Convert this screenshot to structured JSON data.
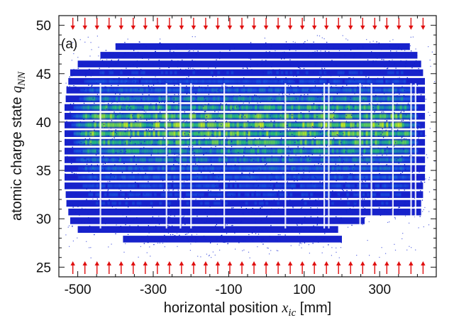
{
  "chart_data": {
    "type": "scatter",
    "panel_label": "(a)",
    "xlabel": {
      "prefix": "horizontal position ",
      "math": "x",
      "math_sub": "ic",
      "suffix": " [mm]"
    },
    "ylabel": {
      "prefix": "atomic charge state ",
      "math": "q",
      "math_sub": "NN"
    },
    "xlim": [
      -550,
      450
    ],
    "ylim": [
      24,
      51
    ],
    "x_ticks": [
      -500,
      -300,
      -100,
      100,
      300
    ],
    "x_tick_labels": [
      "-500",
      "-300",
      "-100",
      "100",
      "300"
    ],
    "x_minor_step": 50,
    "y_ticks": [
      25,
      30,
      35,
      40,
      45,
      50
    ],
    "y_tick_labels": [
      "25",
      "30",
      "35",
      "40",
      "45",
      "50"
    ],
    "y_minor_step": 1,
    "grid": false,
    "colormap": [
      "#0b16c8",
      "#1a5fe0",
      "#22c07a",
      "#c6f01a"
    ],
    "marker_color": "#e01010",
    "marker_x_positions": [
      -513,
      -481,
      -449,
      -417,
      -385,
      -353,
      -321,
      -289,
      -257,
      -225,
      -193,
      -161,
      -129,
      -97,
      -65,
      -33,
      -1,
      31,
      63,
      95,
      127,
      159,
      191,
      223,
      255,
      287,
      319,
      351,
      383,
      415
    ],
    "bands": [
      {
        "q": 27.9,
        "x_start": -380,
        "x_end": 200,
        "intensity": 0.05
      },
      {
        "q": 28.9,
        "x_start": -500,
        "x_end": 190,
        "intensity": 0.08
      },
      {
        "q": 29.8,
        "x_start": -520,
        "x_end": 260,
        "intensity": 0.12
      },
      {
        "q": 30.7,
        "x_start": -525,
        "x_end": 410,
        "intensity": 0.16
      },
      {
        "q": 31.6,
        "x_start": -530,
        "x_end": 410,
        "intensity": 0.2
      },
      {
        "q": 32.5,
        "x_start": -532,
        "x_end": 415,
        "intensity": 0.25
      },
      {
        "q": 33.4,
        "x_start": -535,
        "x_end": 415,
        "intensity": 0.3
      },
      {
        "q": 34.3,
        "x_start": -535,
        "x_end": 420,
        "intensity": 0.36
      },
      {
        "q": 35.2,
        "x_start": -535,
        "x_end": 420,
        "intensity": 0.45
      },
      {
        "q": 36.1,
        "x_start": -535,
        "x_end": 420,
        "intensity": 0.55
      },
      {
        "q": 37.0,
        "x_start": -535,
        "x_end": 420,
        "intensity": 0.7
      },
      {
        "q": 37.9,
        "x_start": -535,
        "x_end": 420,
        "intensity": 0.85
      },
      {
        "q": 38.8,
        "x_start": -535,
        "x_end": 420,
        "intensity": 0.95
      },
      {
        "q": 39.7,
        "x_start": -535,
        "x_end": 420,
        "intensity": 1.0
      },
      {
        "q": 40.6,
        "x_start": -535,
        "x_end": 420,
        "intensity": 0.92
      },
      {
        "q": 41.5,
        "x_start": -535,
        "x_end": 420,
        "intensity": 0.78
      },
      {
        "q": 42.4,
        "x_start": -532,
        "x_end": 420,
        "intensity": 0.6
      },
      {
        "q": 43.3,
        "x_start": -530,
        "x_end": 420,
        "intensity": 0.45
      },
      {
        "q": 44.2,
        "x_start": -525,
        "x_end": 420,
        "intensity": 0.32
      },
      {
        "q": 45.1,
        "x_start": -520,
        "x_end": 415,
        "intensity": 0.22
      },
      {
        "q": 46.0,
        "x_start": -500,
        "x_end": 410,
        "intensity": 0.14
      },
      {
        "q": 46.9,
        "x_start": -440,
        "x_end": 400,
        "intensity": 0.08
      },
      {
        "q": 47.8,
        "x_start": -400,
        "x_end": 380,
        "intensity": 0.04
      }
    ],
    "vertical_gaps": [
      -440,
      -265,
      -228,
      -200,
      -112,
      50,
      153,
      165,
      248,
      278,
      335,
      383,
      395
    ]
  }
}
